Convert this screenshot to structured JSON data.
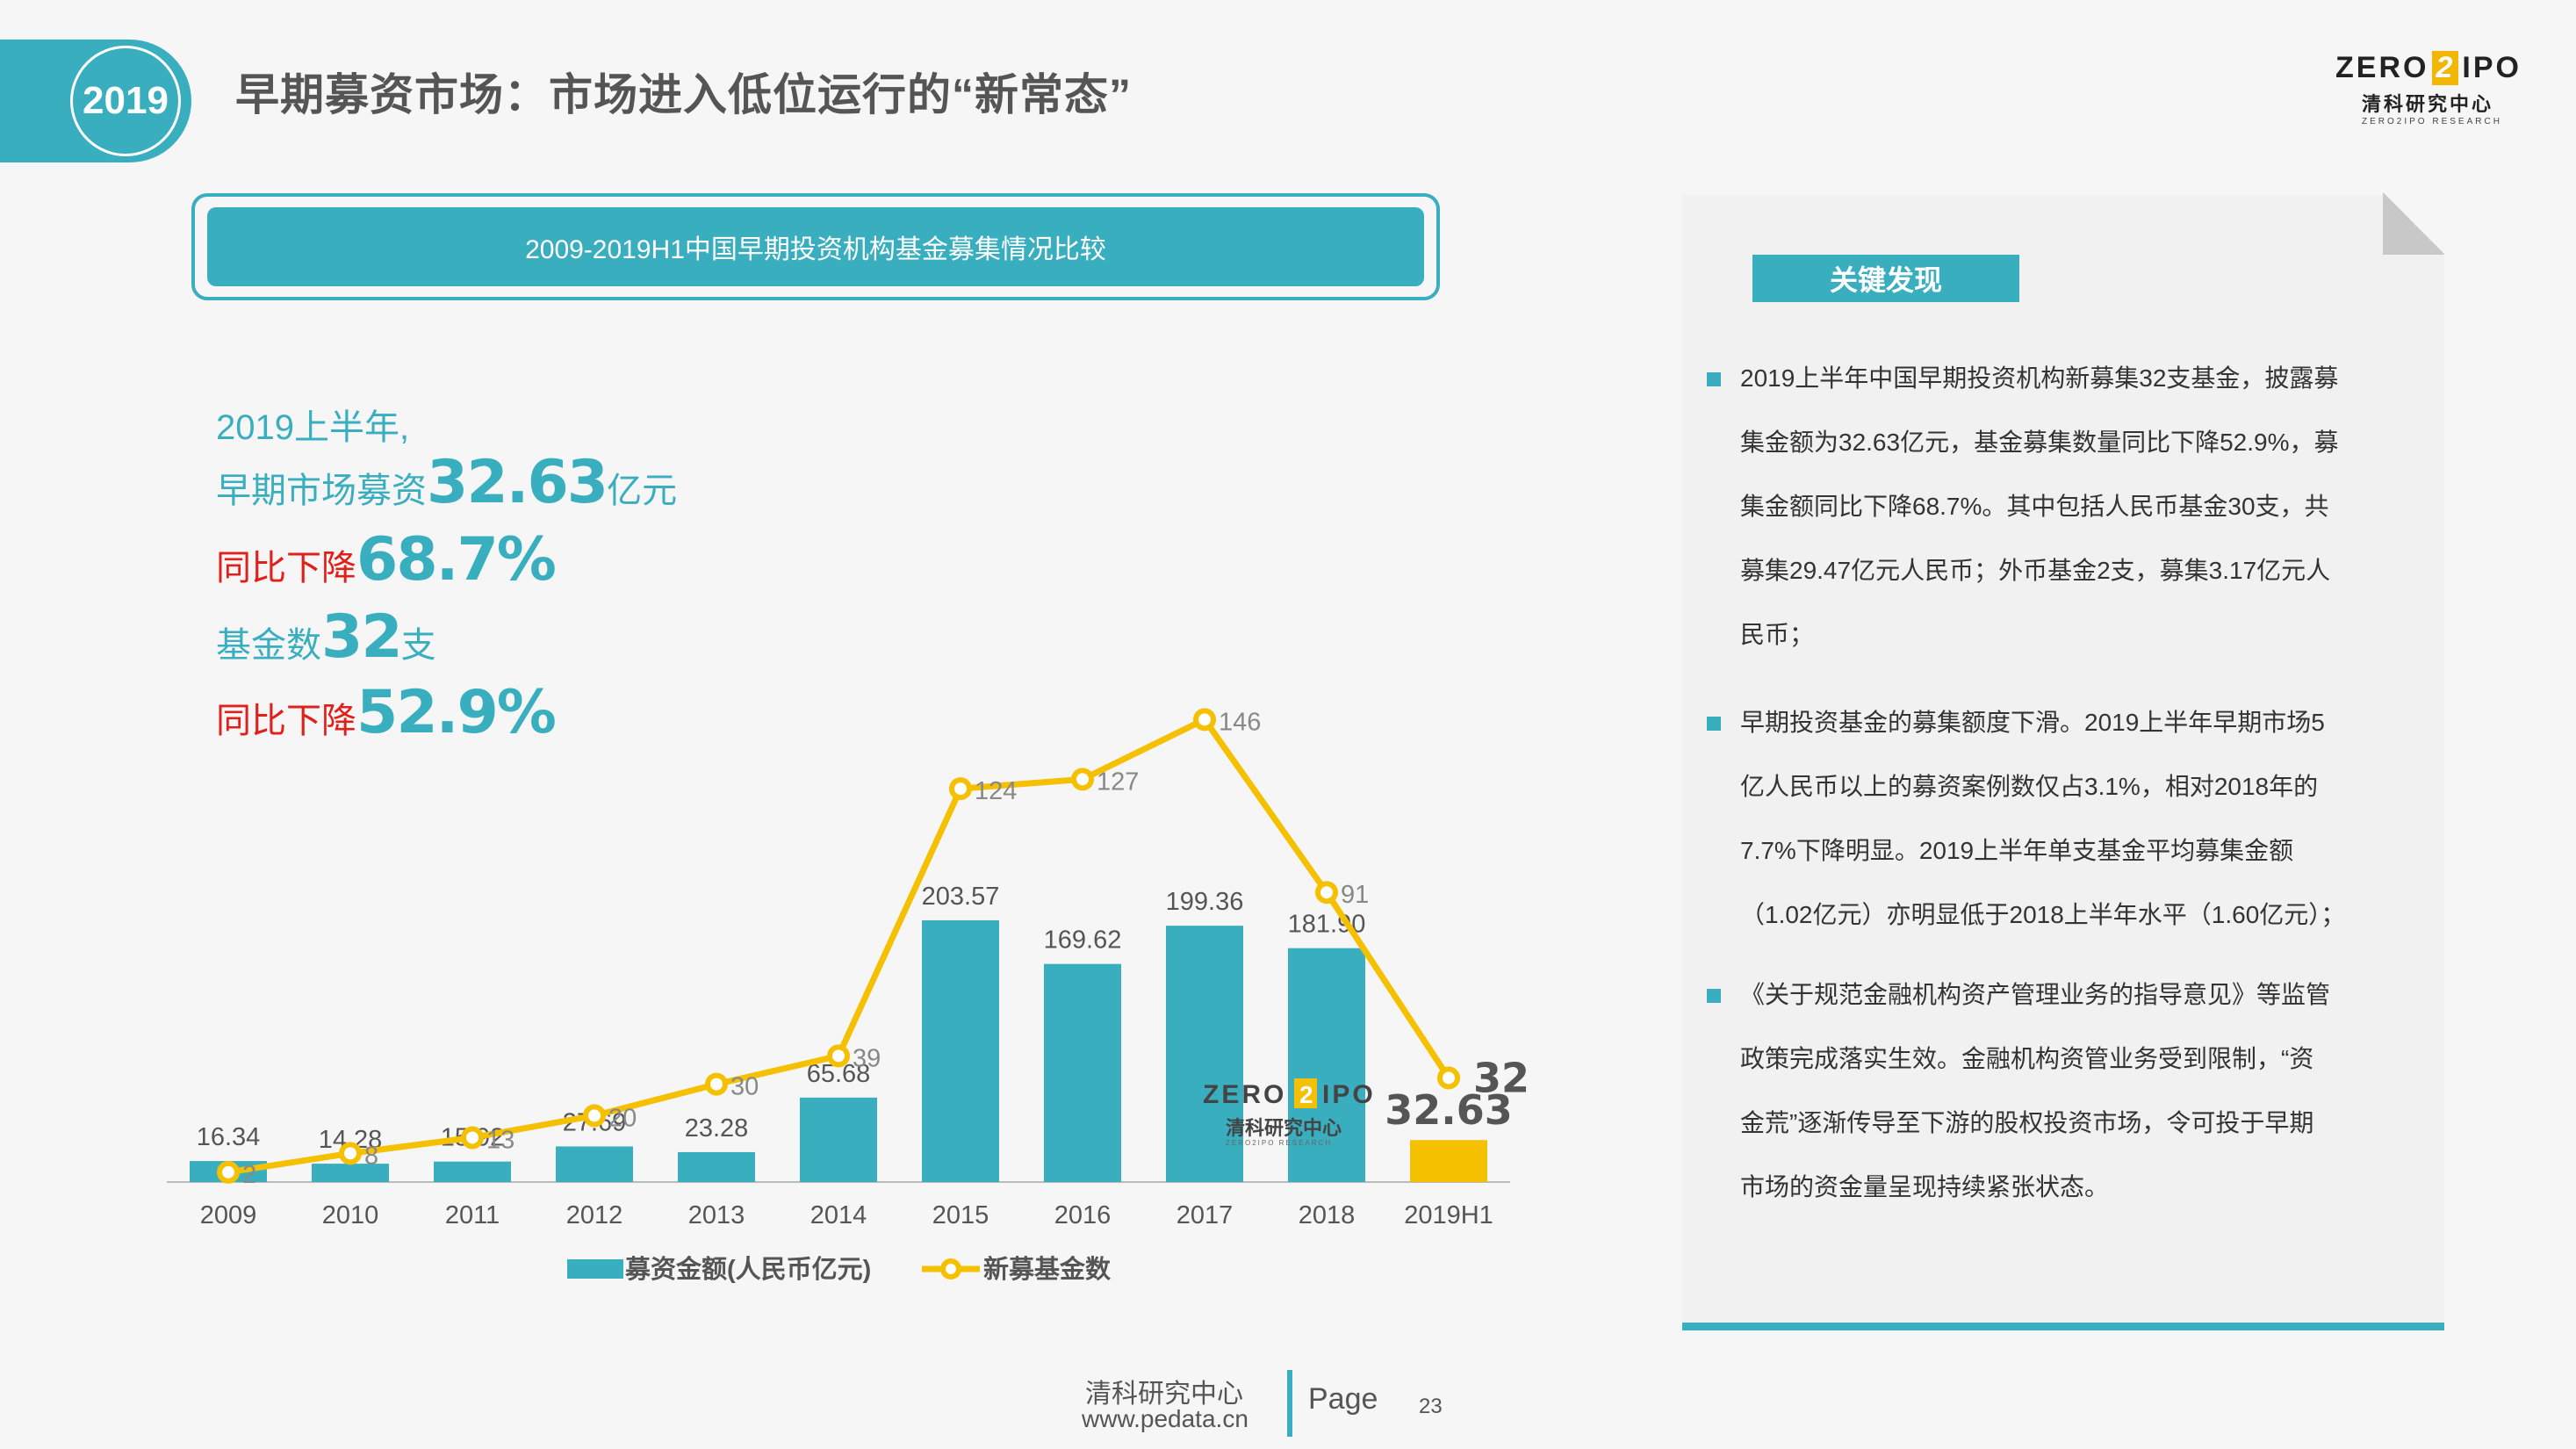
{
  "header": {
    "year_badge": "2019",
    "title": "早期募资市场：市场进入低位运行的“新常态”",
    "logo": {
      "top_left": "ZERO",
      "top_mid": "2",
      "top_right": "IPO",
      "cn": "清科研究中心",
      "en": "ZERO2IPO RESEARCH"
    }
  },
  "chart_title": "2009-2019H1中国早期投资机构基金募集情况比较",
  "highlights": {
    "line1": "2019上半年,",
    "line2_prefix": "早期市场募资",
    "line2_value": "32.63",
    "line2_suffix": "亿元",
    "line3_prefix": "同比下降",
    "line3_value": "68.7%",
    "line4_prefix": "基金数",
    "line4_value": "32",
    "line4_suffix": "支",
    "line5_prefix": "同比下降",
    "line5_value": "52.9%"
  },
  "chart_data": {
    "type": "bar",
    "categories": [
      "2009",
      "2010",
      "2011",
      "2012",
      "2013",
      "2014",
      "2015",
      "2016",
      "2017",
      "2018",
      "2019H1"
    ],
    "series": [
      {
        "name": "募资金额(人民币亿元)",
        "type": "bar",
        "values": [
          16.34,
          14.28,
          15.92,
          27.69,
          23.28,
          65.68,
          203.57,
          169.62,
          199.36,
          181.9,
          32.63
        ],
        "labels": [
          "16.34",
          "14.28",
          "15.92",
          "27.69",
          "23.28",
          "65.68",
          "203.57",
          "169.62",
          "199.36",
          "181.90",
          "32.63"
        ],
        "color": "#38aebf",
        "highlight_color": "#f5c000"
      },
      {
        "name": "新募基金数",
        "type": "line",
        "values": [
          2,
          8,
          13,
          20,
          30,
          39,
          124,
          127,
          146,
          91,
          32
        ],
        "labels": [
          "2",
          "8",
          "13",
          "20",
          "30",
          "39",
          "124",
          "127",
          "146",
          "91",
          "32"
        ],
        "color": "#f5c000"
      }
    ],
    "legend_position": "bottom",
    "grid": false,
    "watermark": {
      "top_left": "ZERO",
      "top_mid": "2",
      "top_right": "IPO",
      "cn": "清科研究中心",
      "en": "ZERO2IPO RESEARCH"
    }
  },
  "panel": {
    "heading": "关键发现",
    "bullets": [
      [
        "2019上半年中国早期投资机构新募集32支基金，披露募",
        "集金额为32.63亿元，基金募集数量同比下降52.9%，募",
        "集金额同比下降68.7%。其中包括人民币基金30支，共",
        "募集29.47亿元人民币；外币基金2支，募集3.17亿元人",
        "民币；"
      ],
      [
        "早期投资基金的募集额度下滑。2019上半年早期市场5",
        "亿人民币以上的募资案例数仅占3.1%，相对2018年的",
        "7.7%下降明显。2019上半年单支基金平均募集金额",
        "（1.02亿元）亦明显低于2018上半年水平（1.60亿元）；"
      ],
      [
        "《关于规范金融机构资产管理业务的指导意见》等监管",
        "政策完成落实生效。金融机构资管业务受到限制，“资",
        "金荒”逐渐传导至下游的股权投资市场，令可投于早期",
        "市场的资金量呈现持续紧张状态。"
      ]
    ]
  },
  "footer": {
    "org": "清科研究中心",
    "url": "www.pedata.cn",
    "page_label": "Page",
    "page_num": "23"
  }
}
